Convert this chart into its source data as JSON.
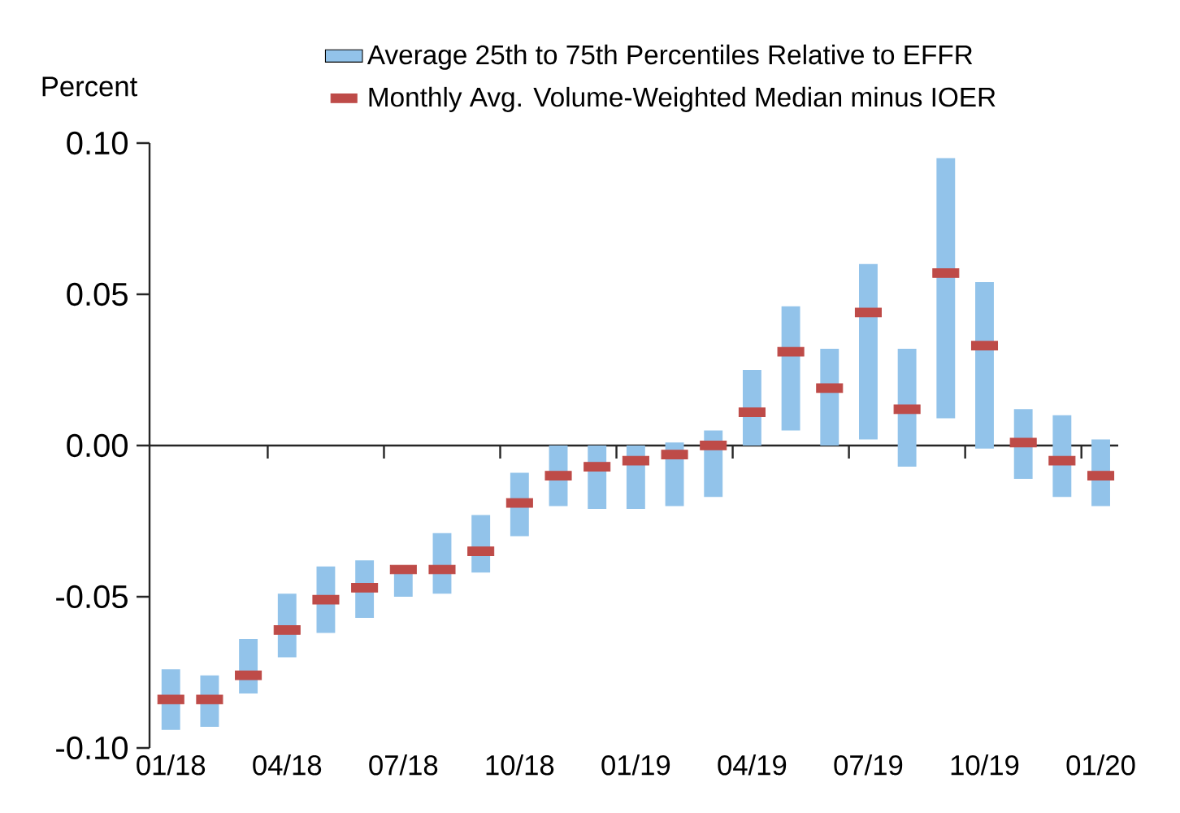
{
  "chart_data": {
    "type": "bar",
    "ylabel": "Percent",
    "categories": [
      "01/18",
      null,
      null,
      "04/18",
      null,
      null,
      "07/18",
      null,
      null,
      "10/18",
      null,
      null,
      "01/19",
      null,
      null,
      "04/19",
      null,
      null,
      "07/19",
      null,
      null,
      "10/19",
      null,
      null,
      "01/20"
    ],
    "series": [
      {
        "name": "Average 25th to 75th Percentiles Relative to EFFR",
        "color": "#92c3ea",
        "base": [
          -0.094,
          -0.093,
          -0.082,
          -0.07,
          -0.062,
          -0.057,
          -0.05,
          -0.049,
          -0.042,
          -0.03,
          -0.02,
          -0.021,
          -0.021,
          -0.02,
          -0.017,
          0.0,
          0.005,
          0.0,
          0.002,
          -0.007,
          0.009,
          -0.001,
          -0.011,
          -0.017,
          -0.02
        ],
        "values": [
          0.02,
          0.017,
          0.018,
          0.021,
          0.022,
          0.019,
          0.008,
          0.02,
          0.019,
          0.021,
          0.02,
          0.021,
          0.021,
          0.021,
          0.022,
          0.025,
          0.041,
          0.032,
          0.058,
          0.039,
          0.086,
          0.055,
          0.023,
          0.027,
          0.022
        ]
      },
      {
        "name": "Monthly Avg. Volume-Weighted Median minus IOER",
        "type": "scatter",
        "marker": "square",
        "color": "#be4b48",
        "values": [
          -0.084,
          -0.084,
          -0.076,
          -0.061,
          -0.051,
          -0.047,
          -0.041,
          -0.041,
          -0.035,
          -0.019,
          -0.01,
          -0.007,
          -0.005,
          -0.003,
          0.0,
          0.011,
          0.031,
          0.019,
          0.044,
          0.012,
          0.057,
          0.033,
          0.001,
          -0.005,
          -0.01
        ]
      }
    ],
    "ylim": [
      -0.1,
      0.1
    ],
    "yticks": [
      {
        "value": -0.1,
        "label": "-0.10"
      },
      {
        "value": -0.05,
        "label": "-0.05"
      },
      {
        "value": 0,
        "label": "0.00"
      },
      {
        "value": 0.05,
        "label": "0.05"
      },
      {
        "value": 0.1,
        "label": "0.10"
      }
    ],
    "legend": "top"
  }
}
